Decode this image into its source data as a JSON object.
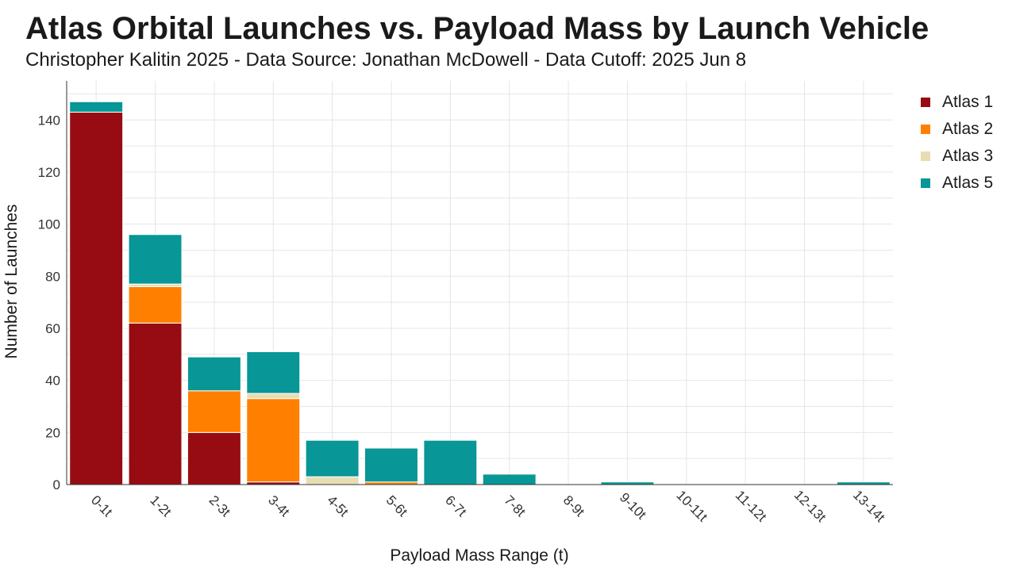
{
  "title": "Atlas Orbital Launches vs. Payload Mass by Launch Vehicle",
  "subtitle": "Christopher Kalitin 2025 - Data Source: Jonathan McDowell - Data Cutoff: 2025 Jun 8",
  "chart_data": {
    "type": "bar",
    "stacked": true,
    "categories": [
      "0-1t",
      "1-2t",
      "2-3t",
      "3-4t",
      "4-5t",
      "5-6t",
      "6-7t",
      "7-8t",
      "8-9t",
      "9-10t",
      "10-11t",
      "11-12t",
      "12-13t",
      "13-14t"
    ],
    "series": [
      {
        "name": "Atlas 1",
        "color": "#960c12",
        "values": [
          143,
          62,
          20,
          1,
          0,
          0,
          0,
          0,
          0,
          0,
          0,
          0,
          0,
          0
        ]
      },
      {
        "name": "Atlas 2",
        "color": "#ff8000",
        "values": [
          0,
          14,
          16,
          32,
          0,
          1,
          0,
          0,
          0,
          0,
          0,
          0,
          0,
          0
        ]
      },
      {
        "name": "Atlas 3",
        "color": "#e8dcb3",
        "values": [
          0,
          1,
          0,
          2,
          3,
          0,
          0,
          0,
          0,
          0,
          0,
          0,
          0,
          0
        ]
      },
      {
        "name": "Atlas 5",
        "color": "#089696",
        "values": [
          4,
          19,
          13,
          16,
          14,
          13,
          17,
          4,
          0,
          1,
          0,
          0,
          0,
          1
        ]
      }
    ],
    "xlabel": "Payload Mass Range (t)",
    "ylabel": "Number of Launches",
    "ylim": [
      0,
      155
    ],
    "yticks": [
      0,
      20,
      40,
      60,
      80,
      100,
      120,
      140
    ],
    "grid": true,
    "legend_position": "top-right"
  }
}
